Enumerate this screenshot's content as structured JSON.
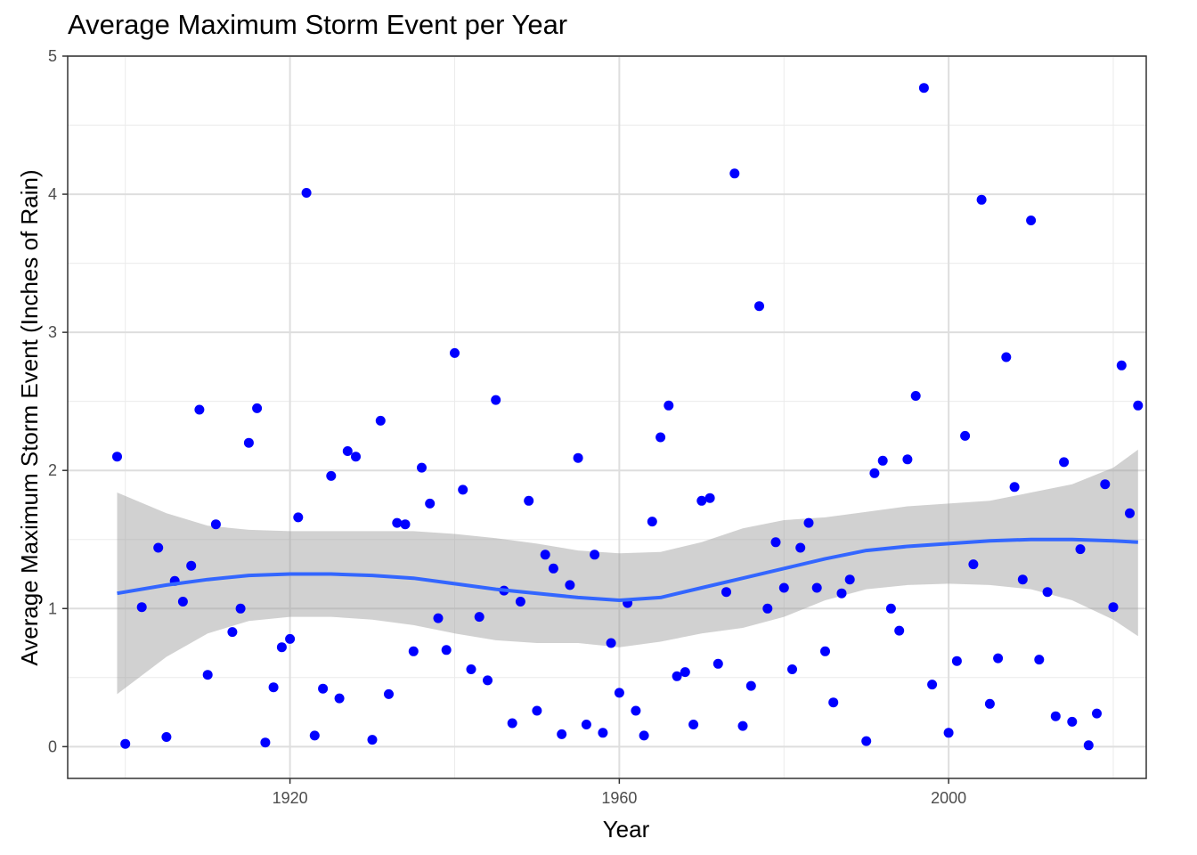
{
  "chart_data": {
    "type": "scatter",
    "title": "Average Maximum Storm Event per Year",
    "xlabel": "Year",
    "ylabel": "Average Maximum Storm Event (Inches of Rain)",
    "xlim": [
      1893,
      2024
    ],
    "ylim": [
      -0.23,
      5.0
    ],
    "x_ticks": [
      1920,
      1960,
      2000
    ],
    "x_tick_labels": [
      "1920",
      "1960",
      "2000"
    ],
    "y_ticks": [
      0,
      1,
      2,
      3,
      4,
      5
    ],
    "y_tick_labels": [
      "0",
      "1",
      "2",
      "3",
      "4",
      "5"
    ],
    "grid": true,
    "point_color": "#0000ff",
    "smooth_color": "#3366ff",
    "ribbon_color": "#999999",
    "points": [
      {
        "x": 1899,
        "y": 2.1
      },
      {
        "x": 1900,
        "y": 0.02
      },
      {
        "x": 1902,
        "y": 1.01
      },
      {
        "x": 1904,
        "y": 1.44
      },
      {
        "x": 1905,
        "y": 0.07
      },
      {
        "x": 1906,
        "y": 1.2
      },
      {
        "x": 1907,
        "y": 1.05
      },
      {
        "x": 1908,
        "y": 1.31
      },
      {
        "x": 1909,
        "y": 2.44
      },
      {
        "x": 1910,
        "y": 0.52
      },
      {
        "x": 1911,
        "y": 1.61
      },
      {
        "x": 1913,
        "y": 0.83
      },
      {
        "x": 1914,
        "y": 1.0
      },
      {
        "x": 1915,
        "y": 2.2
      },
      {
        "x": 1916,
        "y": 2.45
      },
      {
        "x": 1917,
        "y": 0.03
      },
      {
        "x": 1918,
        "y": 0.43
      },
      {
        "x": 1919,
        "y": 0.72
      },
      {
        "x": 1920,
        "y": 0.78
      },
      {
        "x": 1921,
        "y": 1.66
      },
      {
        "x": 1922,
        "y": 4.01
      },
      {
        "x": 1923,
        "y": 0.08
      },
      {
        "x": 1924,
        "y": 0.42
      },
      {
        "x": 1925,
        "y": 1.96
      },
      {
        "x": 1926,
        "y": 0.35
      },
      {
        "x": 1927,
        "y": 2.14
      },
      {
        "x": 1928,
        "y": 2.1
      },
      {
        "x": 1930,
        "y": 0.05
      },
      {
        "x": 1931,
        "y": 2.36
      },
      {
        "x": 1932,
        "y": 0.38
      },
      {
        "x": 1933,
        "y": 1.62
      },
      {
        "x": 1934,
        "y": 1.61
      },
      {
        "x": 1935,
        "y": 0.69
      },
      {
        "x": 1936,
        "y": 2.02
      },
      {
        "x": 1937,
        "y": 1.76
      },
      {
        "x": 1938,
        "y": 0.93
      },
      {
        "x": 1939,
        "y": 0.7
      },
      {
        "x": 1940,
        "y": 2.85
      },
      {
        "x": 1941,
        "y": 1.86
      },
      {
        "x": 1942,
        "y": 0.56
      },
      {
        "x": 1943,
        "y": 0.94
      },
      {
        "x": 1944,
        "y": 0.48
      },
      {
        "x": 1945,
        "y": 2.51
      },
      {
        "x": 1946,
        "y": 1.13
      },
      {
        "x": 1947,
        "y": 0.17
      },
      {
        "x": 1948,
        "y": 1.05
      },
      {
        "x": 1949,
        "y": 1.78
      },
      {
        "x": 1950,
        "y": 0.26
      },
      {
        "x": 1951,
        "y": 1.39
      },
      {
        "x": 1952,
        "y": 1.29
      },
      {
        "x": 1953,
        "y": 0.09
      },
      {
        "x": 1954,
        "y": 1.17
      },
      {
        "x": 1955,
        "y": 2.09
      },
      {
        "x": 1956,
        "y": 0.16
      },
      {
        "x": 1957,
        "y": 1.39
      },
      {
        "x": 1958,
        "y": 0.1
      },
      {
        "x": 1959,
        "y": 0.75
      },
      {
        "x": 1960,
        "y": 0.39
      },
      {
        "x": 1961,
        "y": 1.04
      },
      {
        "x": 1962,
        "y": 0.26
      },
      {
        "x": 1963,
        "y": 0.08
      },
      {
        "x": 1964,
        "y": 1.63
      },
      {
        "x": 1965,
        "y": 2.24
      },
      {
        "x": 1966,
        "y": 2.47
      },
      {
        "x": 1967,
        "y": 0.51
      },
      {
        "x": 1968,
        "y": 0.54
      },
      {
        "x": 1969,
        "y": 0.16
      },
      {
        "x": 1970,
        "y": 1.78
      },
      {
        "x": 1971,
        "y": 1.8
      },
      {
        "x": 1972,
        "y": 0.6
      },
      {
        "x": 1973,
        "y": 1.12
      },
      {
        "x": 1974,
        "y": 4.15
      },
      {
        "x": 1975,
        "y": 0.15
      },
      {
        "x": 1976,
        "y": 0.44
      },
      {
        "x": 1977,
        "y": 3.19
      },
      {
        "x": 1978,
        "y": 1.0
      },
      {
        "x": 1979,
        "y": 1.48
      },
      {
        "x": 1980,
        "y": 1.15
      },
      {
        "x": 1981,
        "y": 0.56
      },
      {
        "x": 1982,
        "y": 1.44
      },
      {
        "x": 1983,
        "y": 1.62
      },
      {
        "x": 1984,
        "y": 1.15
      },
      {
        "x": 1985,
        "y": 0.69
      },
      {
        "x": 1986,
        "y": 0.32
      },
      {
        "x": 1987,
        "y": 1.11
      },
      {
        "x": 1988,
        "y": 1.21
      },
      {
        "x": 1990,
        "y": 0.04
      },
      {
        "x": 1991,
        "y": 1.98
      },
      {
        "x": 1992,
        "y": 2.07
      },
      {
        "x": 1993,
        "y": 1.0
      },
      {
        "x": 1994,
        "y": 0.84
      },
      {
        "x": 1995,
        "y": 2.08
      },
      {
        "x": 1996,
        "y": 2.54
      },
      {
        "x": 1997,
        "y": 4.77
      },
      {
        "x": 1998,
        "y": 0.45
      },
      {
        "x": 2000,
        "y": 0.1
      },
      {
        "x": 2001,
        "y": 0.62
      },
      {
        "x": 2002,
        "y": 2.25
      },
      {
        "x": 2003,
        "y": 1.32
      },
      {
        "x": 2004,
        "y": 3.96
      },
      {
        "x": 2005,
        "y": 0.31
      },
      {
        "x": 2006,
        "y": 0.64
      },
      {
        "x": 2007,
        "y": 2.82
      },
      {
        "x": 2008,
        "y": 1.88
      },
      {
        "x": 2009,
        "y": 1.21
      },
      {
        "x": 2010,
        "y": 3.81
      },
      {
        "x": 2011,
        "y": 0.63
      },
      {
        "x": 2012,
        "y": 1.12
      },
      {
        "x": 2013,
        "y": 0.22
      },
      {
        "x": 2014,
        "y": 2.06
      },
      {
        "x": 2015,
        "y": 0.18
      },
      {
        "x": 2016,
        "y": 1.43
      },
      {
        "x": 2017,
        "y": 0.01
      },
      {
        "x": 2018,
        "y": 0.24
      },
      {
        "x": 2019,
        "y": 1.9
      },
      {
        "x": 2020,
        "y": 1.01
      },
      {
        "x": 2021,
        "y": 2.76
      },
      {
        "x": 2022,
        "y": 1.69
      },
      {
        "x": 2023,
        "y": 2.47
      }
    ],
    "smooth": {
      "x": [
        1899,
        1905,
        1910,
        1915,
        1920,
        1925,
        1930,
        1935,
        1940,
        1945,
        1950,
        1955,
        1960,
        1965,
        1970,
        1975,
        1980,
        1985,
        1990,
        1995,
        2000,
        2005,
        2010,
        2015,
        2020,
        2023
      ],
      "y": [
        1.11,
        1.17,
        1.21,
        1.24,
        1.25,
        1.25,
        1.24,
        1.22,
        1.18,
        1.14,
        1.11,
        1.08,
        1.06,
        1.08,
        1.15,
        1.22,
        1.29,
        1.36,
        1.42,
        1.45,
        1.47,
        1.49,
        1.5,
        1.5,
        1.49,
        1.48
      ],
      "lower": [
        0.38,
        0.65,
        0.82,
        0.91,
        0.94,
        0.94,
        0.92,
        0.88,
        0.82,
        0.77,
        0.75,
        0.75,
        0.72,
        0.76,
        0.82,
        0.86,
        0.94,
        1.06,
        1.14,
        1.17,
        1.18,
        1.17,
        1.14,
        1.06,
        0.92,
        0.8
      ],
      "upper": [
        1.84,
        1.69,
        1.6,
        1.57,
        1.56,
        1.56,
        1.56,
        1.56,
        1.54,
        1.51,
        1.47,
        1.42,
        1.4,
        1.41,
        1.48,
        1.58,
        1.64,
        1.66,
        1.7,
        1.74,
        1.76,
        1.78,
        1.84,
        1.9,
        2.02,
        2.15
      ]
    }
  }
}
